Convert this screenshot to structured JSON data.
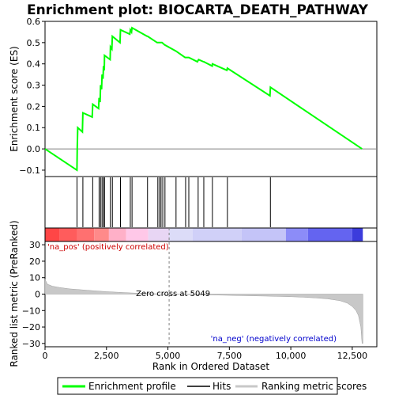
{
  "chart_data": {
    "type": "line",
    "title": "Enrichment plot: BIOCARTA_DEATH_PATHWAY",
    "colors": {
      "enrichment_line": "#00ff00",
      "hits": "#000000",
      "metric_fill": "#c8c8c8",
      "zero_line": "#808080",
      "neg_label": "#0000cc",
      "pos_label": "#cc0000"
    },
    "top_panel": {
      "ylabel": "Enrichment score (ES)",
      "ylim": [
        -0.13,
        0.6
      ],
      "yticks": [
        -0.1,
        0.0,
        0.1,
        0.2,
        0.3,
        0.4,
        0.5,
        0.6
      ],
      "ytick_labels": [
        "−0.1",
        "0.0",
        "0.1",
        "0.2",
        "0.3",
        "0.4",
        "0.5",
        "0.6"
      ],
      "es_points": [
        [
          0,
          0.0
        ],
        [
          1300,
          -0.1
        ],
        [
          1310,
          0.01
        ],
        [
          1330,
          0.1
        ],
        [
          1520,
          0.08
        ],
        [
          1540,
          0.17
        ],
        [
          1920,
          0.15
        ],
        [
          1940,
          0.21
        ],
        [
          2180,
          0.19
        ],
        [
          2200,
          0.24
        ],
        [
          2240,
          0.22
        ],
        [
          2260,
          0.3
        ],
        [
          2300,
          0.28
        ],
        [
          2320,
          0.35
        ],
        [
          2360,
          0.33
        ],
        [
          2380,
          0.39
        ],
        [
          2410,
          0.37
        ],
        [
          2420,
          0.44
        ],
        [
          2650,
          0.42
        ],
        [
          2660,
          0.48
        ],
        [
          2720,
          0.47
        ],
        [
          2740,
          0.53
        ],
        [
          3050,
          0.5
        ],
        [
          3070,
          0.56
        ],
        [
          3450,
          0.54
        ],
        [
          3470,
          0.56
        ],
        [
          3520,
          0.55
        ],
        [
          3540,
          0.57
        ],
        [
          4150,
          0.53
        ],
        [
          4170,
          0.53
        ],
        [
          4560,
          0.5
        ],
        [
          4640,
          0.5
        ],
        [
          4700,
          0.5
        ],
        [
          4760,
          0.5
        ],
        [
          4860,
          0.49
        ],
        [
          5330,
          0.46
        ],
        [
          5700,
          0.43
        ],
        [
          5850,
          0.43
        ],
        [
          6200,
          0.41
        ],
        [
          6250,
          0.42
        ],
        [
          6450,
          0.41
        ],
        [
          6460,
          0.41
        ],
        [
          6800,
          0.39
        ],
        [
          6810,
          0.4
        ],
        [
          7400,
          0.37
        ],
        [
          7420,
          0.38
        ],
        [
          9150,
          0.25
        ],
        [
          9170,
          0.29
        ],
        [
          12900,
          0.0
        ]
      ]
    },
    "hit_positions": [
      1300,
      1540,
      1940,
      2200,
      2260,
      2320,
      2380,
      2420,
      2660,
      2740,
      3070,
      3470,
      3540,
      4170,
      4590,
      4660,
      4720,
      4790,
      4880,
      5330,
      5720,
      5850,
      6230,
      6460,
      6810,
      7420,
      9170
    ],
    "bottom_panel": {
      "ylabel": "Ranked list metric (PreRanked)",
      "ylim": [
        -32,
        32
      ],
      "yticks": [
        -30,
        -20,
        -10,
        0,
        10,
        20,
        30
      ],
      "ytick_labels": [
        "−30",
        "−20",
        "−10",
        "0",
        "10",
        "20",
        "30"
      ],
      "metric_curve": [
        [
          0,
          9
        ],
        [
          100,
          6
        ],
        [
          300,
          4.8
        ],
        [
          600,
          4
        ],
        [
          1000,
          3.2
        ],
        [
          1500,
          2.6
        ],
        [
          2000,
          2
        ],
        [
          2500,
          1.5
        ],
        [
          3000,
          1.1
        ],
        [
          3500,
          0.7
        ],
        [
          4000,
          0.4
        ],
        [
          4500,
          0.2
        ],
        [
          5049,
          0
        ],
        [
          6000,
          -0.3
        ],
        [
          7000,
          -0.6
        ],
        [
          8000,
          -0.9
        ],
        [
          9000,
          -1.2
        ],
        [
          10000,
          -1.6
        ],
        [
          10500,
          -1.9
        ],
        [
          11000,
          -2.3
        ],
        [
          11500,
          -2.9
        ],
        [
          12000,
          -4
        ],
        [
          12300,
          -5.5
        ],
        [
          12500,
          -7.5
        ],
        [
          12650,
          -10
        ],
        [
          12750,
          -13
        ],
        [
          12850,
          -20
        ],
        [
          12900,
          -30
        ],
        [
          12930,
          -30
        ]
      ],
      "zero_cross_x": 5049,
      "zero_cross_label": "Zero cross at 5049",
      "pos_label": "'na_pos' (positively correlated)",
      "neg_label": "'na_neg' (negatively correlated)"
    },
    "xlabel": "Rank in Ordered Dataset",
    "xlim": [
      0,
      13500
    ],
    "xticks": [
      0,
      2500,
      5000,
      7500,
      10000,
      12500
    ],
    "xtick_labels": [
      "0",
      "2,500",
      "5,000",
      "7,500",
      "10,000",
      "12,500"
    ],
    "max_rank": 12930,
    "heat_bar": {
      "colors": [
        "#ff4646",
        "#ff5c5c",
        "#ff7070",
        "#ff8a8a",
        "#ffb0c8",
        "#ffc8e8",
        "#e8d6f4",
        "#dcdcf8",
        "#d0d0f8",
        "#c4c4f8",
        "#8c8cf8",
        "#6464f0",
        "#3c3cdc",
        "#2020c8"
      ],
      "breaks": [
        0,
        600,
        1300,
        2000,
        2600,
        3300,
        4200,
        5049,
        6000,
        8000,
        9800,
        10700,
        12500,
        12930
      ]
    },
    "legend": [
      {
        "key": "enrichment",
        "label": "Enrichment profile",
        "color": "#00ff00"
      },
      {
        "key": "hits",
        "label": "Hits",
        "color": "#000000"
      },
      {
        "key": "metric",
        "label": "Ranking metric scores",
        "color": "#c8c8c8"
      }
    ]
  }
}
